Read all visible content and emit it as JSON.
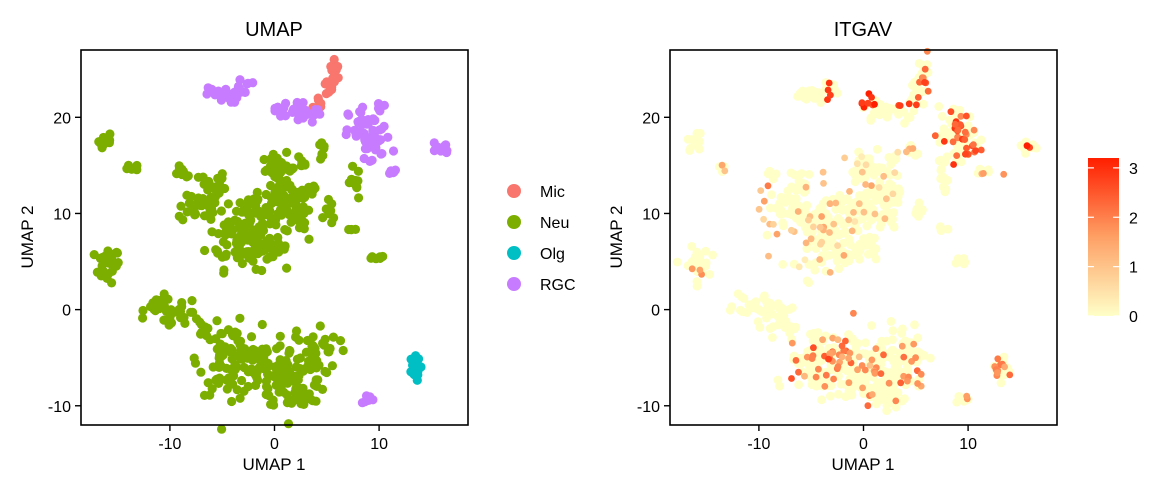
{
  "chart_data": [
    {
      "type": "scatter",
      "title": "UMAP",
      "xlabel": "UMAP 1",
      "ylabel": "UMAP 2",
      "xlim": [
        -18.5,
        18.5
      ],
      "ylim": [
        -12,
        27
      ],
      "xticks": [
        -10,
        0,
        10
      ],
      "yticks": [
        -10,
        0,
        10,
        20
      ],
      "xtick_labels": [
        "-10",
        "0",
        "10"
      ],
      "ytick_labels": [
        "-10",
        "0",
        "10",
        "20"
      ],
      "grid": false,
      "legend_position": "right",
      "series": [
        {
          "name": "Mic",
          "color": "#F8766D",
          "clusters": [
            {
              "x": 4.3,
              "y": 21.3,
              "sx": 0.3,
              "sy": 0.5,
              "n": 6
            },
            {
              "x": 5.2,
              "y": 23.3,
              "sx": 0.3,
              "sy": 0.6,
              "n": 12
            },
            {
              "x": 5.8,
              "y": 25.0,
              "sx": 0.25,
              "sy": 0.5,
              "n": 10
            }
          ]
        },
        {
          "name": "Neu",
          "color": "#7CAE00",
          "clusters": [
            {
              "x": -16.0,
              "y": 17.5,
              "sx": 0.4,
              "sy": 0.5,
              "n": 10
            },
            {
              "x": -13.6,
              "y": 14.7,
              "sx": 0.3,
              "sy": 0.2,
              "n": 5
            },
            {
              "x": -16.0,
              "y": 4.6,
              "sx": 0.6,
              "sy": 0.9,
              "n": 28
            },
            {
              "x": -8.8,
              "y": 14.2,
              "sx": 0.5,
              "sy": 0.3,
              "n": 8
            },
            {
              "x": -7.2,
              "y": 10.6,
              "sx": 1.0,
              "sy": 0.6,
              "n": 28
            },
            {
              "x": -5.9,
              "y": 12.8,
              "sx": 0.6,
              "sy": 0.9,
              "n": 22
            },
            {
              "x": -3.2,
              "y": 7.5,
              "sx": 1.6,
              "sy": 1.6,
              "n": 90
            },
            {
              "x": -1.8,
              "y": 10.8,
              "sx": 0.9,
              "sy": 0.8,
              "n": 30
            },
            {
              "x": -0.4,
              "y": 6.1,
              "sx": 0.8,
              "sy": 0.6,
              "n": 20
            },
            {
              "x": 0.4,
              "y": 14.6,
              "sx": 0.8,
              "sy": 0.8,
              "n": 35
            },
            {
              "x": 0.6,
              "y": 10.4,
              "sx": 1.2,
              "sy": 1.2,
              "n": 40
            },
            {
              "x": 2.1,
              "y": 12.1,
              "sx": 0.7,
              "sy": 0.8,
              "n": 25
            },
            {
              "x": 2.3,
              "y": 9.4,
              "sx": 0.6,
              "sy": 0.6,
              "n": 16
            },
            {
              "x": 2.6,
              "y": 15.3,
              "sx": 0.3,
              "sy": 0.4,
              "n": 6
            },
            {
              "x": 3.4,
              "y": 12.2,
              "sx": 0.3,
              "sy": 0.5,
              "n": 8
            },
            {
              "x": 4.6,
              "y": 16.4,
              "sx": 0.2,
              "sy": 0.5,
              "n": 7
            },
            {
              "x": 7.6,
              "y": 13.0,
              "sx": 0.3,
              "sy": 0.9,
              "n": 10
            },
            {
              "x": 5.4,
              "y": 10.2,
              "sx": 0.3,
              "sy": 0.7,
              "n": 8
            },
            {
              "x": 7.4,
              "y": 8.4,
              "sx": 0.3,
              "sy": 0.2,
              "n": 4
            },
            {
              "x": 9.6,
              "y": 5.1,
              "sx": 0.5,
              "sy": 0.3,
              "n": 6
            },
            {
              "x": -10.8,
              "y": 0.4,
              "sx": 0.8,
              "sy": 0.5,
              "n": 18
            },
            {
              "x": -9.0,
              "y": -0.4,
              "sx": 1.0,
              "sy": 0.7,
              "n": 22
            },
            {
              "x": -7.0,
              "y": -1.8,
              "sx": 0.5,
              "sy": 0.5,
              "n": 8
            },
            {
              "x": -4.2,
              "y": -5.2,
              "sx": 1.5,
              "sy": 1.8,
              "n": 90
            },
            {
              "x": -1.4,
              "y": -6.4,
              "sx": 1.2,
              "sy": 1.4,
              "n": 40
            },
            {
              "x": 1.6,
              "y": -7.3,
              "sx": 1.4,
              "sy": 1.6,
              "n": 65
            },
            {
              "x": 3.7,
              "y": -4.4,
              "sx": 1.2,
              "sy": 1.5,
              "n": 50
            },
            {
              "x": 2.5,
              "y": -9.3,
              "sx": 0.8,
              "sy": 0.5,
              "n": 20
            }
          ]
        },
        {
          "name": "Olg",
          "color": "#00BFC4",
          "clusters": [
            {
              "x": 13.3,
              "y": -6.2,
              "sx": 0.3,
              "sy": 0.6,
              "n": 22
            }
          ]
        },
        {
          "name": "RGC",
          "color": "#C77CFF",
          "clusters": [
            {
              "x": -5.0,
              "y": 22.3,
              "sx": 0.8,
              "sy": 0.4,
              "n": 25
            },
            {
              "x": -3.2,
              "y": 23.2,
              "sx": 0.5,
              "sy": 0.4,
              "n": 10
            },
            {
              "x": 1.6,
              "y": 20.7,
              "sx": 0.8,
              "sy": 0.6,
              "n": 25
            },
            {
              "x": 3.8,
              "y": 20.4,
              "sx": 0.4,
              "sy": 0.4,
              "n": 6
            },
            {
              "x": 9.1,
              "y": 18.0,
              "sx": 1.0,
              "sy": 1.6,
              "n": 65
            },
            {
              "x": 11.5,
              "y": 14.3,
              "sx": 0.6,
              "sy": 0.2,
              "n": 8
            },
            {
              "x": 15.8,
              "y": 16.9,
              "sx": 0.5,
              "sy": 0.4,
              "n": 8
            },
            {
              "x": 9.3,
              "y": -9.3,
              "sx": 0.4,
              "sy": 0.3,
              "n": 6
            }
          ]
        }
      ]
    },
    {
      "type": "scatter",
      "title": "ITGAV",
      "xlabel": "UMAP 1",
      "ylabel": "UMAP 2",
      "xlim": [
        -18.5,
        18.5
      ],
      "ylim": [
        -12,
        27
      ],
      "xticks": [
        -10,
        0,
        10
      ],
      "yticks": [
        -10,
        0,
        10,
        20
      ],
      "xtick_labels": [
        "-10",
        "0",
        "10"
      ],
      "ytick_labels": [
        "-10",
        "0",
        "10",
        "20"
      ],
      "grid": false,
      "legend_position": "right",
      "color_scale": {
        "low": "#FFFFC8",
        "mid": "#FEA065",
        "high": "#FF1E00",
        "min": 0,
        "max": 3.2,
        "ticks": [
          0,
          1,
          2,
          3
        ],
        "tick_labels": [
          "0",
          "1",
          "2",
          "3"
        ]
      },
      "background_expression": 0,
      "highlighted_clusters": [
        {
          "x": 6.0,
          "y": 24.4,
          "sx": 0.3,
          "sy": 0.9,
          "n": 8,
          "value": 2.2
        },
        {
          "x": 1.0,
          "y": 21.5,
          "sx": 0.9,
          "sy": 0.4,
          "n": 8,
          "value": 3.0
        },
        {
          "x": 3.5,
          "y": 21.2,
          "sx": 0.7,
          "sy": 0.5,
          "n": 5,
          "value": 3.0
        },
        {
          "x": -3.2,
          "y": 23.0,
          "sx": 0.6,
          "sy": 0.5,
          "n": 4,
          "value": 2.8
        },
        {
          "x": 9.3,
          "y": 18.0,
          "sx": 0.9,
          "sy": 1.4,
          "n": 30,
          "value": 2.4
        },
        {
          "x": 15.8,
          "y": 16.9,
          "sx": 0.4,
          "sy": 0.4,
          "n": 2,
          "value": 3.2
        },
        {
          "x": -3.5,
          "y": 8.5,
          "sx": 2.0,
          "sy": 2.2,
          "n": 30,
          "value": 1.0
        },
        {
          "x": 0.5,
          "y": 13.0,
          "sx": 1.5,
          "sy": 1.6,
          "n": 18,
          "value": 0.9
        },
        {
          "x": -8.5,
          "y": 10.5,
          "sx": 1.5,
          "sy": 1.5,
          "n": 10,
          "value": 1.1
        },
        {
          "x": -3.5,
          "y": -5.0,
          "sx": 1.8,
          "sy": 2.0,
          "n": 40,
          "value": 1.9
        },
        {
          "x": 2.2,
          "y": -6.8,
          "sx": 1.6,
          "sy": 1.8,
          "n": 30,
          "value": 1.8
        },
        {
          "x": 13.3,
          "y": -6.3,
          "sx": 0.3,
          "sy": 0.6,
          "n": 10,
          "value": 2.0
        },
        {
          "x": -16.0,
          "y": 4.5,
          "sx": 0.5,
          "sy": 0.8,
          "n": 3,
          "value": 1.2
        },
        {
          "x": -13.6,
          "y": 14.7,
          "sx": 0.3,
          "sy": 0.2,
          "n": 2,
          "value": 1.5
        },
        {
          "x": 9.5,
          "y": -9.3,
          "sx": 0.3,
          "sy": 0.2,
          "n": 2,
          "value": 1.7
        },
        {
          "x": 12.0,
          "y": 14.2,
          "sx": 0.5,
          "sy": 0.3,
          "n": 3,
          "value": 1.6
        },
        {
          "x": 4.4,
          "y": 16.4,
          "sx": 0.3,
          "sy": 0.4,
          "n": 3,
          "value": 1.4
        }
      ]
    }
  ]
}
